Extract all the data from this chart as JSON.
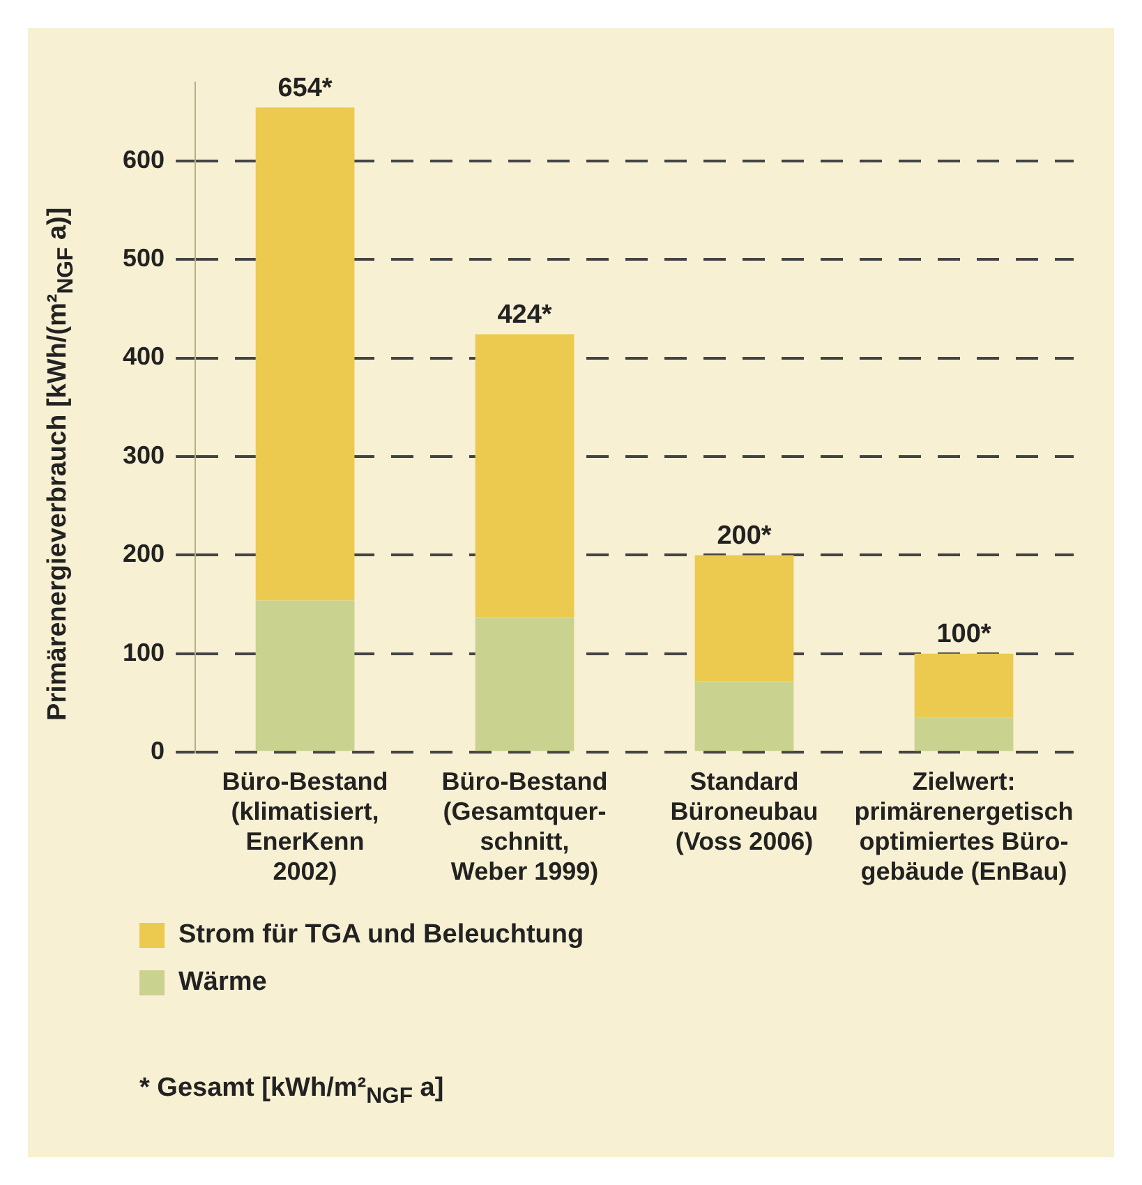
{
  "chart_data": {
    "type": "bar",
    "stacked": true,
    "ylabel": "Primärenergieverbrauch [kWh/(m²$_{NGF}$ a)]",
    "categories": [
      "Büro-Bestand\n(klimatisiert,\nEnerKenn\n2002)",
      "Büro-Bestand\n(Gesamtquer-\nschnitt,\nWeber 1999)",
      "Standard\nBüroneubau\n(Voss 2006)",
      "Zielwert:\nprimärenergetisch\noptimiertes Büro-\ngebäude (EnBau)"
    ],
    "series": [
      {
        "name": "Wärme",
        "color": "#c9d38f",
        "values": [
          154,
          137,
          72,
          35
        ]
      },
      {
        "name": "Strom für TGA und Beleuchtung",
        "color": "#ecc94f",
        "values": [
          500,
          287,
          128,
          65
        ]
      }
    ],
    "totals": [
      "654*",
      "424*",
      "200*",
      "100*"
    ],
    "ylim": [
      0,
      680
    ],
    "yticks": [
      0,
      100,
      200,
      300,
      400,
      500,
      600
    ],
    "grid": "y",
    "legend": "bottom",
    "annotations": [
      "* Gesamt [kWh/m²$_{NGF}$ a]"
    ]
  }
}
